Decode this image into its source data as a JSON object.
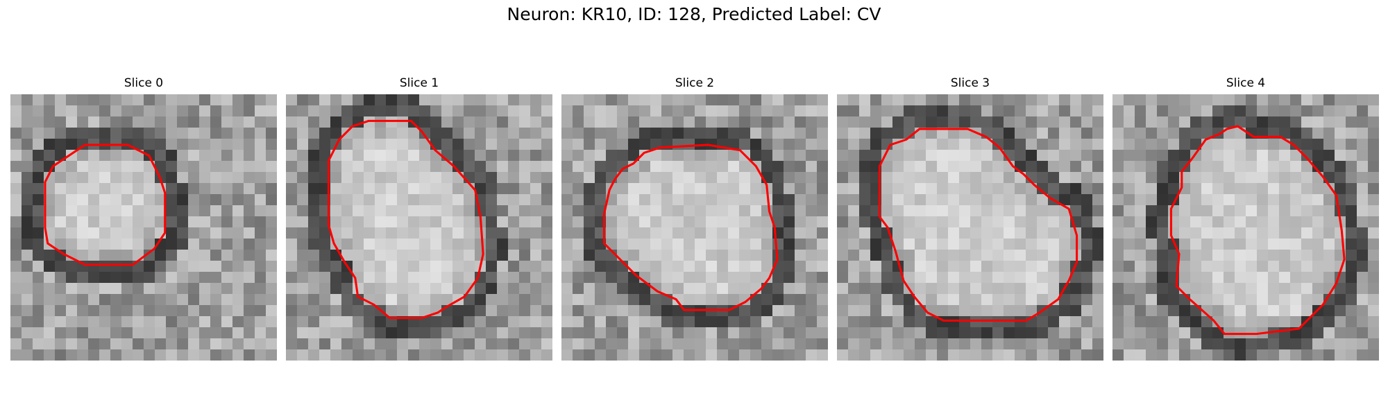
{
  "figure": {
    "title": "Neuron: KR10, ID: 128, Predicted Label: CV",
    "contour_color": "#ff0000",
    "colormap": "gray"
  },
  "panels": [
    {
      "title": "Slice 0",
      "contour": [
        [
          0.16,
          0.27
        ],
        [
          0.22,
          0.23
        ],
        [
          0.28,
          0.19
        ],
        [
          0.44,
          0.19
        ],
        [
          0.52,
          0.23
        ],
        [
          0.56,
          0.31
        ],
        [
          0.58,
          0.37
        ],
        [
          0.58,
          0.52
        ],
        [
          0.54,
          0.58
        ],
        [
          0.46,
          0.64
        ],
        [
          0.28,
          0.64
        ],
        [
          0.2,
          0.6
        ],
        [
          0.14,
          0.56
        ],
        [
          0.13,
          0.5
        ],
        [
          0.13,
          0.33
        ]
      ]
    },
    {
      "title": "Slice 1",
      "contour": [
        [
          0.16,
          0.25
        ],
        [
          0.2,
          0.17
        ],
        [
          0.25,
          0.12
        ],
        [
          0.31,
          0.1
        ],
        [
          0.47,
          0.1
        ],
        [
          0.51,
          0.14
        ],
        [
          0.56,
          0.21
        ],
        [
          0.63,
          0.27
        ],
        [
          0.71,
          0.36
        ],
        [
          0.73,
          0.46
        ],
        [
          0.74,
          0.6
        ],
        [
          0.72,
          0.69
        ],
        [
          0.67,
          0.76
        ],
        [
          0.6,
          0.8
        ],
        [
          0.57,
          0.82
        ],
        [
          0.51,
          0.84
        ],
        [
          0.39,
          0.84
        ],
        [
          0.33,
          0.79
        ],
        [
          0.27,
          0.76
        ],
        [
          0.26,
          0.69
        ],
        [
          0.22,
          0.63
        ],
        [
          0.18,
          0.56
        ],
        [
          0.16,
          0.49
        ]
      ]
    },
    {
      "title": "Slice 2",
      "contour": [
        [
          0.18,
          0.36
        ],
        [
          0.2,
          0.32
        ],
        [
          0.23,
          0.28
        ],
        [
          0.27,
          0.26
        ],
        [
          0.31,
          0.22
        ],
        [
          0.37,
          0.2
        ],
        [
          0.55,
          0.19
        ],
        [
          0.67,
          0.21
        ],
        [
          0.73,
          0.27
        ],
        [
          0.77,
          0.34
        ],
        [
          0.78,
          0.44
        ],
        [
          0.8,
          0.5
        ],
        [
          0.81,
          0.62
        ],
        [
          0.78,
          0.69
        ],
        [
          0.75,
          0.73
        ],
        [
          0.69,
          0.78
        ],
        [
          0.63,
          0.81
        ],
        [
          0.46,
          0.81
        ],
        [
          0.43,
          0.77
        ],
        [
          0.36,
          0.74
        ],
        [
          0.28,
          0.68
        ],
        [
          0.22,
          0.62
        ],
        [
          0.16,
          0.56
        ],
        [
          0.16,
          0.45
        ]
      ]
    },
    {
      "title": "Slice 3",
      "contour": [
        [
          0.16,
          0.27
        ],
        [
          0.2,
          0.19
        ],
        [
          0.26,
          0.17
        ],
        [
          0.31,
          0.13
        ],
        [
          0.49,
          0.13
        ],
        [
          0.56,
          0.16
        ],
        [
          0.61,
          0.2
        ],
        [
          0.66,
          0.27
        ],
        [
          0.7,
          0.3
        ],
        [
          0.74,
          0.34
        ],
        [
          0.8,
          0.39
        ],
        [
          0.87,
          0.43
        ],
        [
          0.9,
          0.53
        ],
        [
          0.9,
          0.63
        ],
        [
          0.87,
          0.7
        ],
        [
          0.83,
          0.77
        ],
        [
          0.76,
          0.82
        ],
        [
          0.71,
          0.85
        ],
        [
          0.4,
          0.85
        ],
        [
          0.34,
          0.82
        ],
        [
          0.29,
          0.76
        ],
        [
          0.25,
          0.7
        ],
        [
          0.22,
          0.59
        ],
        [
          0.19,
          0.5
        ],
        [
          0.16,
          0.46
        ]
      ]
    },
    {
      "title": "Slice 4",
      "contour": [
        [
          0.3,
          0.24
        ],
        [
          0.35,
          0.17
        ],
        [
          0.4,
          0.15
        ],
        [
          0.43,
          0.13
        ],
        [
          0.47,
          0.12
        ],
        [
          0.53,
          0.16
        ],
        [
          0.63,
          0.16
        ],
        [
          0.68,
          0.19
        ],
        [
          0.73,
          0.24
        ],
        [
          0.79,
          0.31
        ],
        [
          0.84,
          0.38
        ],
        [
          0.86,
          0.51
        ],
        [
          0.87,
          0.62
        ],
        [
          0.84,
          0.71
        ],
        [
          0.79,
          0.79
        ],
        [
          0.74,
          0.84
        ],
        [
          0.7,
          0.88
        ],
        [
          0.54,
          0.9
        ],
        [
          0.42,
          0.9
        ],
        [
          0.38,
          0.85
        ],
        [
          0.29,
          0.77
        ],
        [
          0.24,
          0.72
        ],
        [
          0.25,
          0.6
        ],
        [
          0.22,
          0.53
        ],
        [
          0.22,
          0.43
        ],
        [
          0.26,
          0.35
        ],
        [
          0.26,
          0.29
        ]
      ]
    }
  ]
}
